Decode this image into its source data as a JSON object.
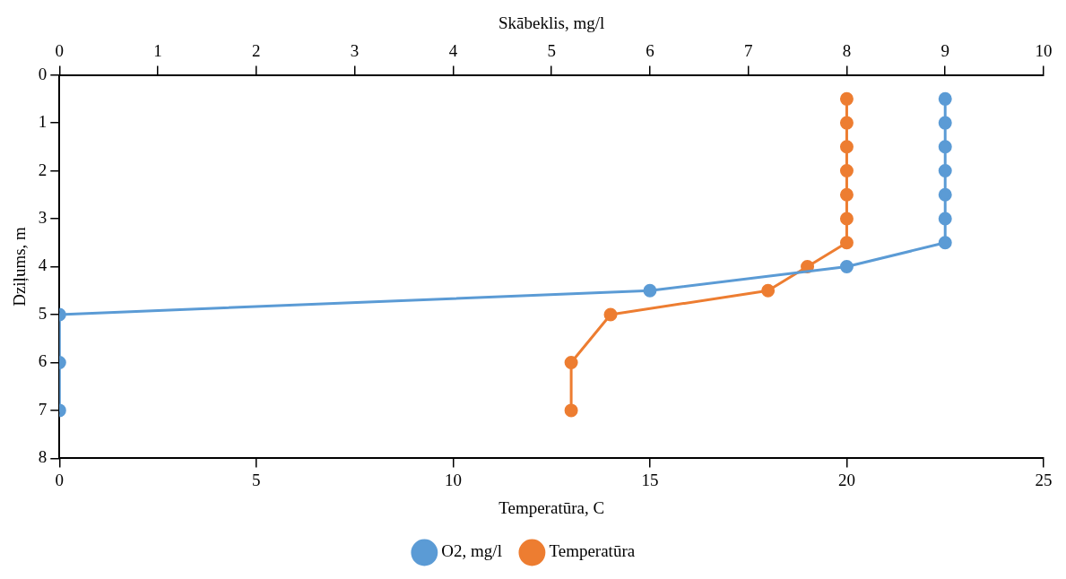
{
  "chart_data": {
    "type": "line",
    "xlabel": "Temperatūra, C",
    "x2label": "Skābeklis, mg/l",
    "ylabel": "Dziļums, m",
    "xlim": [
      0,
      25
    ],
    "xticks": [
      0,
      5,
      10,
      15,
      20,
      25
    ],
    "x2lim": [
      0,
      10
    ],
    "x2ticks": [
      0,
      1,
      2,
      3,
      4,
      5,
      6,
      7,
      8,
      9,
      10
    ],
    "ylim": [
      8,
      0
    ],
    "yticks": [
      0,
      1,
      2,
      3,
      4,
      5,
      6,
      7,
      8
    ],
    "grid": false,
    "legend": "bottom",
    "marker": "circle",
    "line_style": "solid",
    "series": [
      {
        "name": "O2, mg/l",
        "color": "#5b9bd5",
        "axis": "x2",
        "x": [
          9,
          9,
          9,
          9,
          9,
          9,
          9,
          8,
          6,
          0,
          0,
          0
        ],
        "values": [
          0.5,
          1,
          1.5,
          2,
          2.5,
          3,
          3.5,
          4,
          4.5,
          5,
          6,
          7
        ]
      },
      {
        "name": "Temperatūra",
        "color": "#ed7d31",
        "x": [
          20,
          20,
          20,
          20,
          20,
          20,
          20,
          19,
          18,
          14,
          13,
          13
        ],
        "values": [
          0.5,
          1,
          1.5,
          2,
          2.5,
          3,
          3.5,
          4,
          4.5,
          5,
          6,
          7
        ]
      }
    ]
  }
}
